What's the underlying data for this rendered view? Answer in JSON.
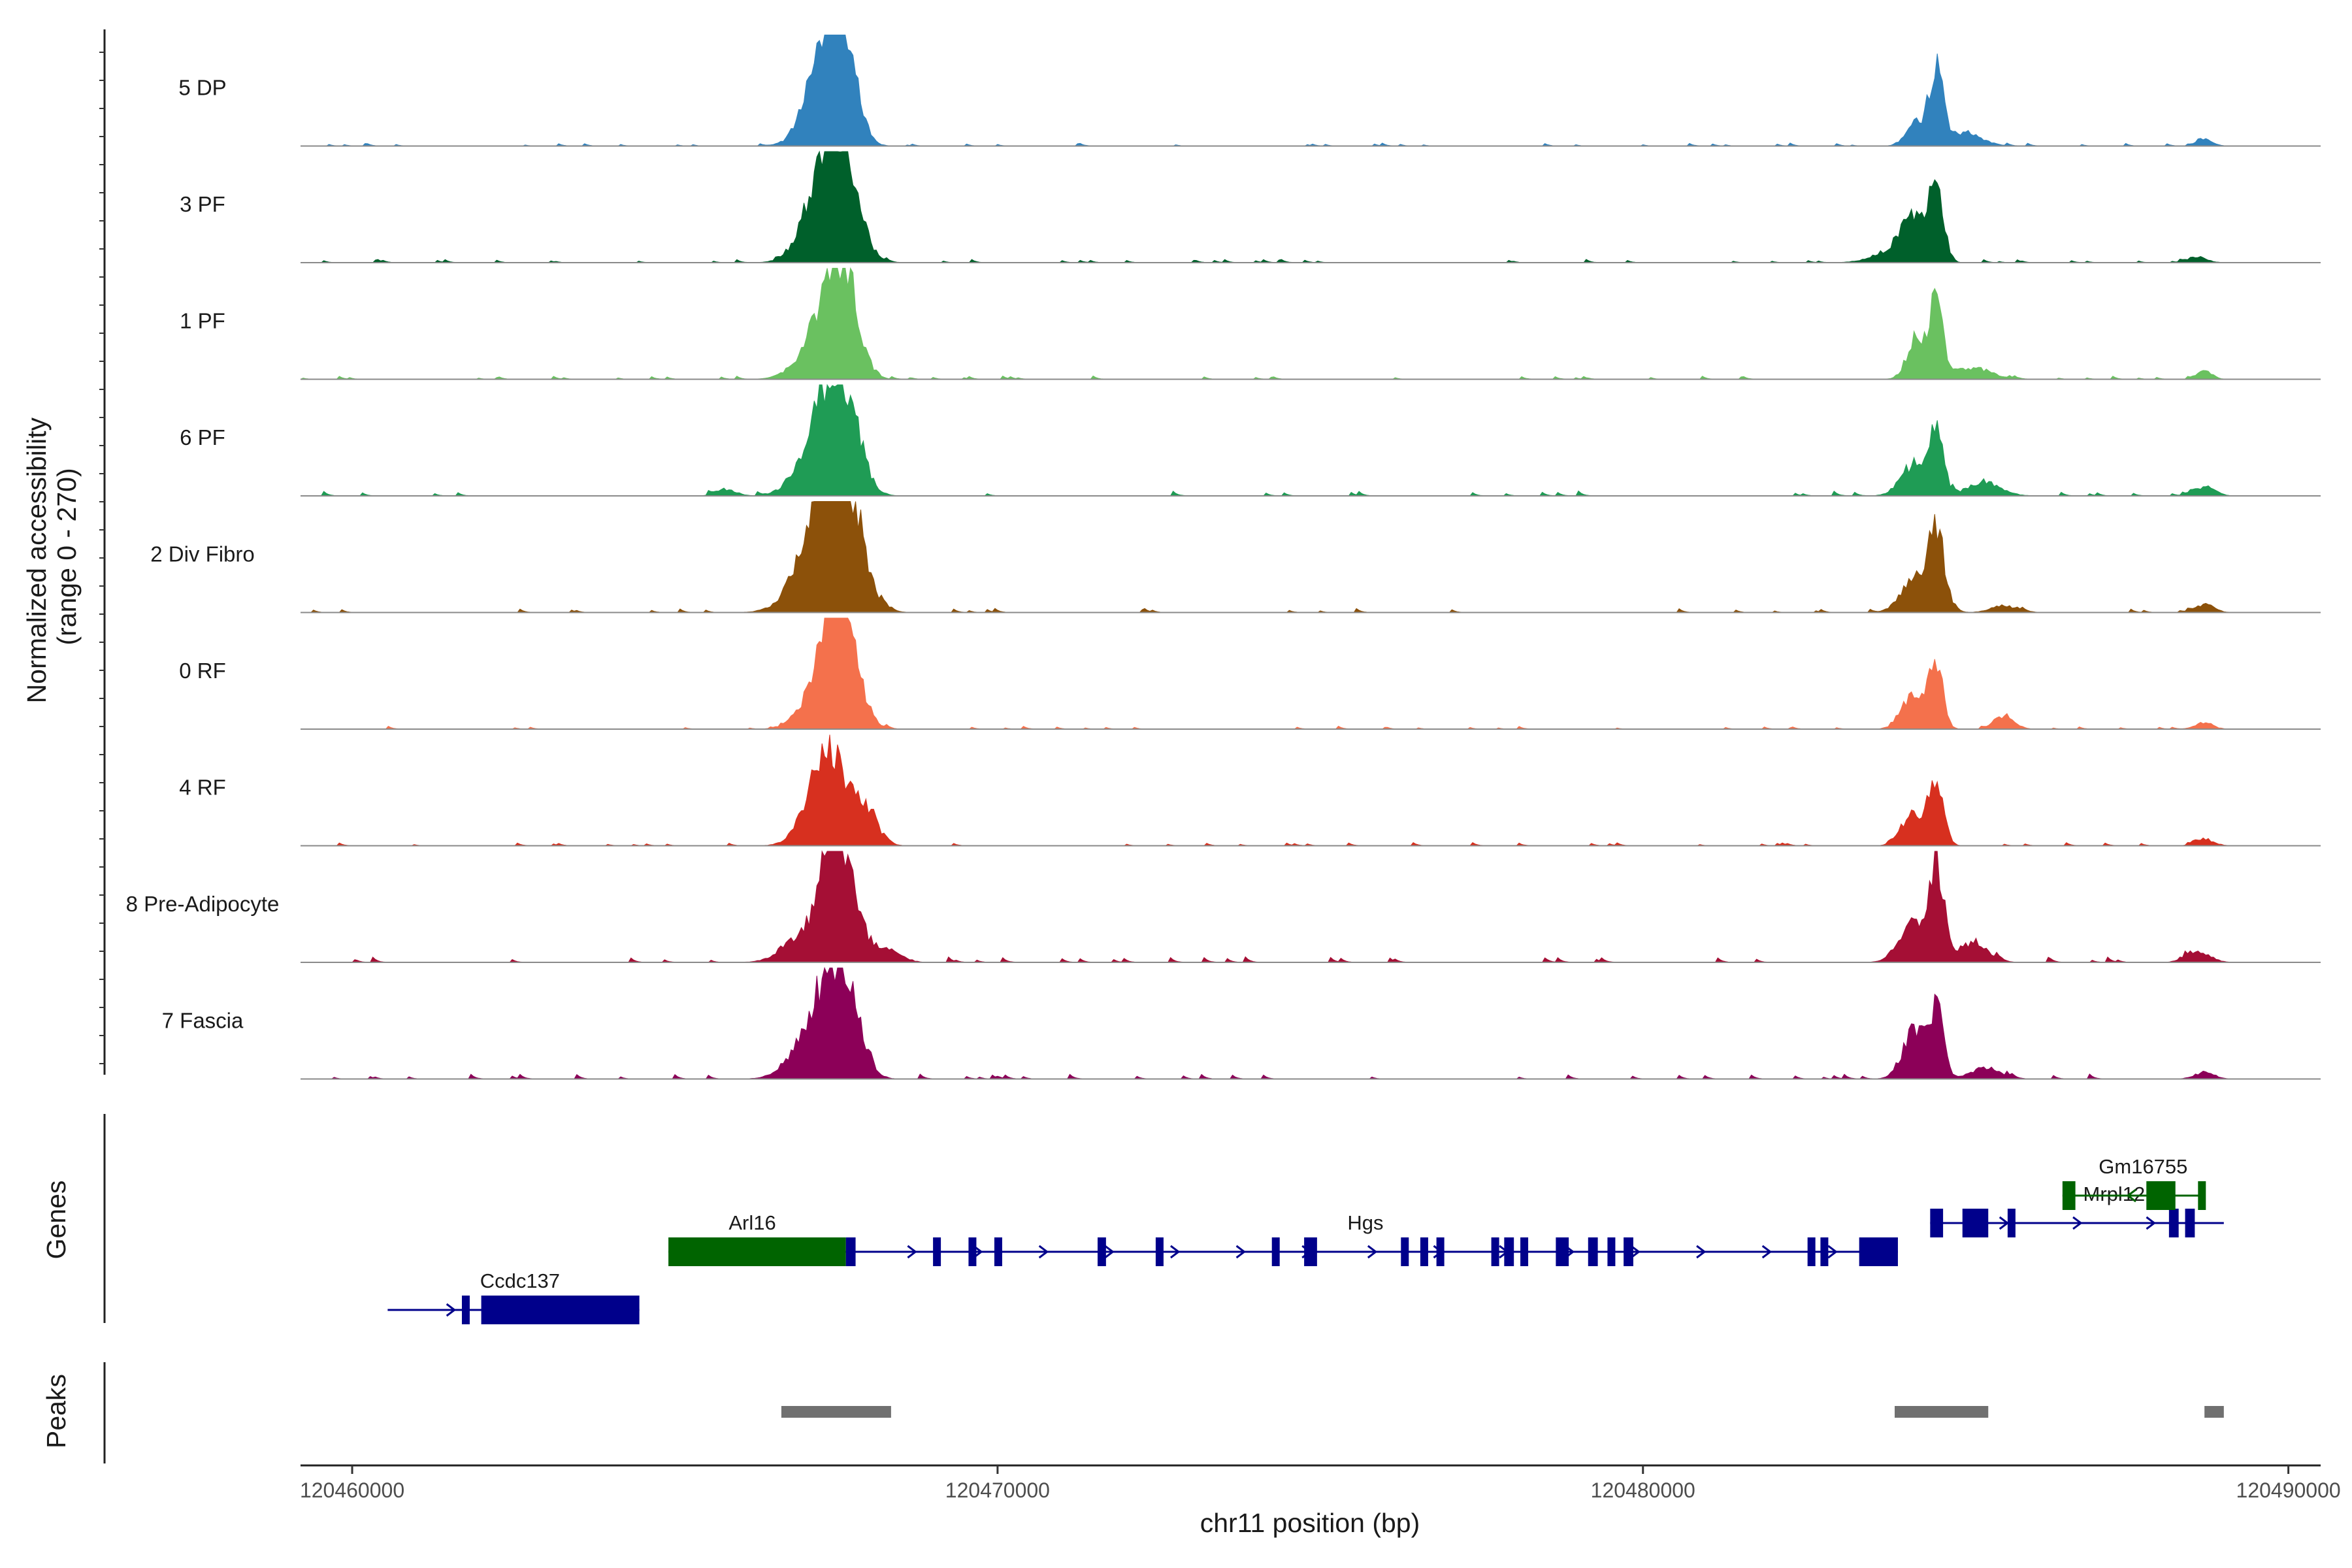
{
  "chart_data": {
    "type": "area",
    "title": "",
    "region": "chr11",
    "xlabel": "chr11 position (bp)",
    "ylabel_line1": "Normalized accessibility",
    "ylabel_line2": "(range 0 - 270)",
    "xlim": [
      120459200,
      120490500
    ],
    "ylim": [
      0,
      270
    ],
    "x_ticks": [
      120460000,
      120470000,
      120480000,
      120490000
    ],
    "x_tick_labels": [
      "120460000",
      "120470000",
      "120480000",
      "120490000"
    ],
    "tracks": [
      {
        "name": "5 DP",
        "color": "#3182bd",
        "peaks": [
          [
            120467400,
            0.92,
            240
          ],
          [
            120467650,
            0.55,
            200
          ],
          [
            120467150,
            0.22,
            260
          ],
          [
            120484550,
            0.72,
            100
          ],
          [
            120484250,
            0.22,
            160
          ],
          [
            120485000,
            0.12,
            250
          ],
          [
            120488700,
            0.06,
            120
          ]
        ],
        "noise": 0.018,
        "seed": 11
      },
      {
        "name": "3 PF",
        "color": "#00602b",
        "peaks": [
          [
            120467400,
            0.88,
            240
          ],
          [
            120467700,
            0.55,
            220
          ],
          [
            120467100,
            0.25,
            260
          ],
          [
            120484550,
            0.68,
            110
          ],
          [
            120484200,
            0.32,
            180
          ],
          [
            120483900,
            0.12,
            300
          ],
          [
            120488600,
            0.05,
            140
          ]
        ],
        "noise": 0.02,
        "seed": 23
      },
      {
        "name": "1 PF",
        "color": "#6ac160",
        "peaks": [
          [
            120467450,
            0.78,
            230
          ],
          [
            120467700,
            0.5,
            200
          ],
          [
            120467100,
            0.2,
            280
          ],
          [
            120484550,
            0.68,
            100
          ],
          [
            120484250,
            0.38,
            150
          ],
          [
            120485100,
            0.1,
            300
          ],
          [
            120488700,
            0.07,
            120
          ]
        ],
        "noise": 0.02,
        "seed": 37
      },
      {
        "name": "6 PF",
        "color": "#1f9c55",
        "peaks": [
          [
            120467400,
            0.72,
            240
          ],
          [
            120467700,
            0.58,
            220
          ],
          [
            120467100,
            0.3,
            280
          ],
          [
            120484550,
            0.55,
            110
          ],
          [
            120484200,
            0.28,
            200
          ],
          [
            120485300,
            0.12,
            250
          ],
          [
            120488700,
            0.08,
            160
          ],
          [
            120465800,
            0.06,
            150
          ]
        ],
        "noise": 0.03,
        "seed": 41
      },
      {
        "name": "2 Div Fibro",
        "color": "#8c510a",
        "peaks": [
          [
            120467400,
            0.9,
            300
          ],
          [
            120467700,
            0.6,
            260
          ],
          [
            120467050,
            0.28,
            320
          ],
          [
            120484550,
            0.68,
            130
          ],
          [
            120484200,
            0.3,
            200
          ],
          [
            120488700,
            0.07,
            150
          ],
          [
            120485600,
            0.06,
            200
          ]
        ],
        "noise": 0.025,
        "seed": 53
      },
      {
        "name": "0 RF",
        "color": "#f4714c",
        "peaks": [
          [
            120467450,
            0.82,
            230
          ],
          [
            120467700,
            0.45,
            220
          ],
          [
            120467150,
            0.2,
            260
          ],
          [
            120484550,
            0.6,
            100
          ],
          [
            120484200,
            0.32,
            180
          ],
          [
            120485600,
            0.12,
            150
          ],
          [
            120488700,
            0.06,
            130
          ]
        ],
        "noise": 0.018,
        "seed": 61
      },
      {
        "name": "4 RF",
        "color": "#d7301f",
        "peaks": [
          [
            120467400,
            0.72,
            220
          ],
          [
            120467900,
            0.4,
            200
          ],
          [
            120467150,
            0.28,
            250
          ],
          [
            120484550,
            0.58,
            110
          ],
          [
            120484200,
            0.3,
            180
          ],
          [
            120488700,
            0.06,
            140
          ]
        ],
        "noise": 0.02,
        "seed": 71
      },
      {
        "name": "8 Pre-Adipocyte",
        "color": "#a50f35",
        "peaks": [
          [
            120467450,
            0.95,
            200
          ],
          [
            120467700,
            0.45,
            220
          ],
          [
            120467000,
            0.25,
            300
          ],
          [
            120468300,
            0.12,
            200
          ],
          [
            120484550,
            0.88,
            110
          ],
          [
            120484150,
            0.35,
            200
          ],
          [
            120485100,
            0.18,
            220
          ],
          [
            120488600,
            0.1,
            180
          ]
        ],
        "noise": 0.035,
        "seed": 83
      },
      {
        "name": "7 Fascia",
        "color": "#8c0058",
        "peaks": [
          [
            120467400,
            0.65,
            240
          ],
          [
            120467700,
            0.5,
            220
          ],
          [
            120467050,
            0.3,
            300
          ],
          [
            120484550,
            0.58,
            110
          ],
          [
            120484200,
            0.42,
            180
          ],
          [
            120485300,
            0.1,
            220
          ],
          [
            120488700,
            0.06,
            150
          ]
        ],
        "noise": 0.03,
        "seed": 97
      }
    ],
    "genes_panel_label": "Genes",
    "genes": [
      {
        "name": "Ccdc137",
        "strand": "+",
        "color": "#00008b",
        "row": 4,
        "start": 120460550,
        "end": 120464450,
        "exons": [
          [
            120461700,
            120461800
          ],
          [
            120462000,
            120464450
          ]
        ],
        "label_x": 120462600
      },
      {
        "name": "Arl16",
        "strand": "-",
        "color": "#006400",
        "row": 3,
        "start": 120464900,
        "end": 120467650,
        "exons": [
          [
            120464900,
            120467650
          ]
        ],
        "label_x": 120466200
      },
      {
        "name": "Hgs",
        "strand": "+",
        "color": "#00008b",
        "row": 3,
        "start": 120467650,
        "end": 120483950,
        "exons": [
          [
            120467650,
            120467800
          ],
          [
            120469000,
            120469080
          ],
          [
            120469550,
            120469650
          ],
          [
            120469950,
            120470030
          ],
          [
            120471550,
            120471680
          ],
          [
            120472450,
            120472530
          ],
          [
            120474250,
            120474320
          ],
          [
            120474750,
            120474950
          ],
          [
            120476250,
            120476350
          ],
          [
            120476550,
            120476650
          ],
          [
            120476800,
            120476900
          ],
          [
            120477650,
            120477700
          ],
          [
            120477850,
            120478000
          ],
          [
            120478100,
            120478200
          ],
          [
            120478650,
            120478850
          ],
          [
            120479150,
            120479300
          ],
          [
            120479450,
            120479550
          ],
          [
            120479700,
            120479850
          ],
          [
            120482550,
            120482650
          ],
          [
            120482750,
            120482850
          ],
          [
            120483350,
            120483950
          ]
        ],
        "label_x": 120475700
      },
      {
        "name": "Mrpl12",
        "strand": "+",
        "color": "#00008b",
        "row": 2,
        "start": 120484450,
        "end": 120489000,
        "exons": [
          [
            120484450,
            120484650
          ],
          [
            120484950,
            120485350
          ],
          [
            120485650,
            120485750
          ],
          [
            120488150,
            120488300
          ],
          [
            120488400,
            120488550
          ]
        ],
        "label_x": 120487300
      },
      {
        "name": "Gm16755",
        "strand": "-",
        "color": "#006400",
        "row": 1,
        "start": 120486500,
        "end": 120488650,
        "exons": [
          [
            120486500,
            120486700
          ],
          [
            120487800,
            120488250
          ],
          [
            120488600,
            120488650
          ]
        ],
        "label_x": 120487750
      }
    ],
    "peaks_panel_label": "Peaks",
    "peaks_regions": [
      [
        120466650,
        120468350
      ],
      [
        120483900,
        120485350
      ],
      [
        120488700,
        120489000
      ]
    ],
    "peak_region_color": "#707070"
  }
}
